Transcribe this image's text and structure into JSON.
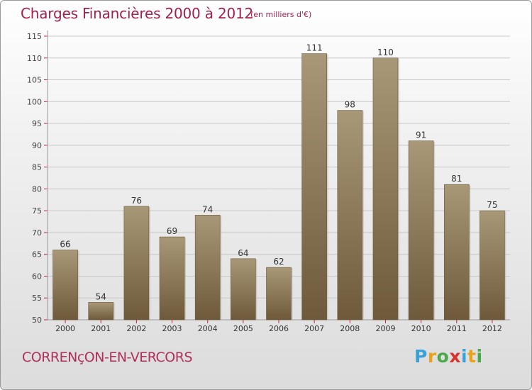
{
  "title": "Charges Financières 2000 à 2012",
  "subtitle": "(en milliers d'€)",
  "location": "CORRENçON-EN-VERCORS",
  "brand": "Proxiti",
  "colors": {
    "title": "#a2204e",
    "bar_top": "#a89878",
    "bar_bottom": "#6e5a3a",
    "grid": "#c8c8c8",
    "tick_mark": "#cc2244"
  },
  "chart_data": {
    "type": "bar",
    "title": "Charges Financières 2000 à 2012",
    "subtitle": "(en milliers d'€)",
    "categories": [
      "2000",
      "2001",
      "2002",
      "2003",
      "2004",
      "2005",
      "2006",
      "2007",
      "2008",
      "2009",
      "2010",
      "2011",
      "2012"
    ],
    "values": [
      66,
      54,
      76,
      69,
      74,
      64,
      62,
      111,
      98,
      110,
      91,
      81,
      75
    ],
    "ylim": [
      50,
      115
    ],
    "yticks": [
      50,
      55,
      60,
      65,
      70,
      75,
      80,
      85,
      90,
      95,
      100,
      105,
      110,
      115
    ],
    "xlabel": "",
    "ylabel": "",
    "grid": true,
    "legend": "none"
  }
}
